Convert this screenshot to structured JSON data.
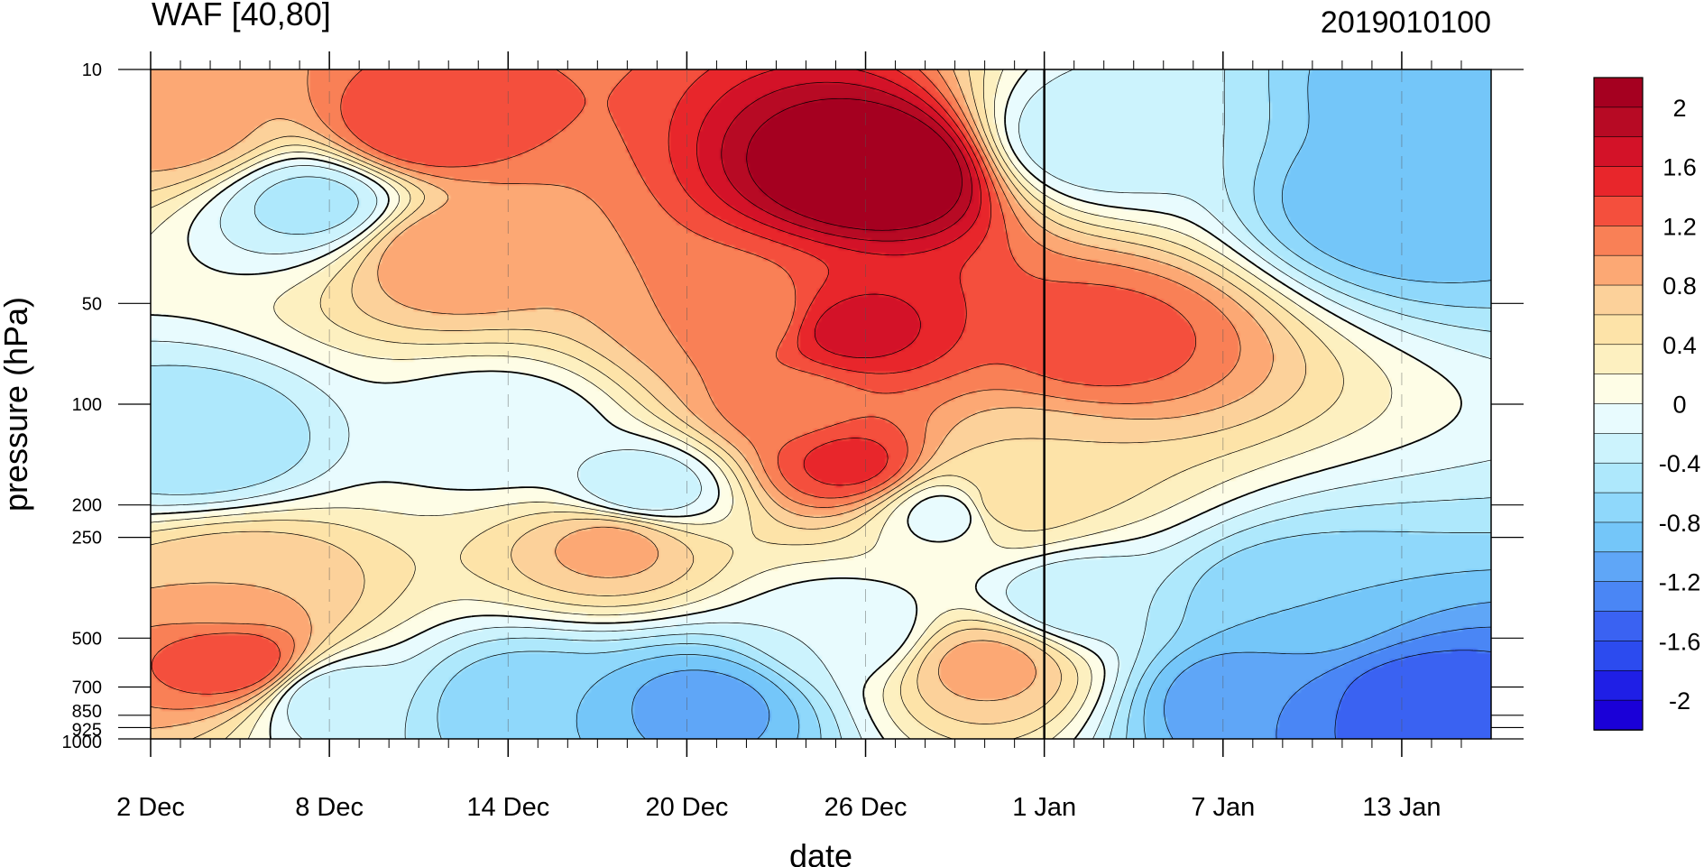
{
  "chart_data": {
    "type": "heatmap",
    "title": "WAF [40,80]",
    "right_title": "2019010100",
    "xlabel": "date",
    "ylabel": "pressure (hPa)",
    "x_start_date": "2 Dec",
    "xlim_days_from_2dec": [
      0,
      45
    ],
    "x_tick_labels": [
      "2 Dec",
      "8 Dec",
      "14 Dec",
      "20 Dec",
      "26 Dec",
      "1 Jan",
      "7 Jan",
      "13 Jan"
    ],
    "x_tick_days": [
      0,
      6,
      12,
      18,
      24,
      30,
      36,
      42
    ],
    "y_scale": "log",
    "ylim": [
      1000,
      10
    ],
    "y_tick_labels": [
      "10",
      "50",
      "100",
      "200",
      "250",
      "500",
      "700",
      "850",
      "925",
      "1000"
    ],
    "y_tick_values": [
      10,
      50,
      100,
      200,
      250,
      500,
      700,
      850,
      925,
      1000
    ],
    "colorbar": {
      "levels": [
        -2.2,
        -2.0,
        -1.8,
        -1.6,
        -1.4,
        -1.2,
        -1.0,
        -0.8,
        -0.6,
        -0.4,
        -0.2,
        0,
        0.2,
        0.4,
        0.6,
        0.8,
        1.0,
        1.2,
        1.4,
        1.6,
        1.8,
        2.0,
        2.2
      ],
      "labels": [
        "2",
        "1.6",
        "1.2",
        "0.8",
        "0.4",
        "0",
        "-0.4",
        "-0.8",
        "-1.2",
        "-1.6",
        "-2"
      ],
      "colors": [
        "#1a00d8",
        "#1f1fe6",
        "#2c4bef",
        "#3a62f2",
        "#4a86f5",
        "#5fa6f7",
        "#74c6f9",
        "#8fd8fb",
        "#aee8fc",
        "#ccf3fd",
        "#e8fbfe",
        "#fefde6",
        "#fdf0c0",
        "#fde3a8",
        "#fcd19a",
        "#fca874",
        "#f98056",
        "#f44f3d",
        "#e8262b",
        "#d31228",
        "#b70a24",
        "#a50020"
      ]
    },
    "marked_date": "1 Jan",
    "features": [
      {
        "day": 24.5,
        "p": 20,
        "value": 2.4
      },
      {
        "day": 23.5,
        "p": 60,
        "value": 1.7
      },
      {
        "day": 23.5,
        "p": 150,
        "value": 1.5
      },
      {
        "day": 21.5,
        "p": 100,
        "value": 1.1
      },
      {
        "day": 20,
        "p": 55,
        "value": 1.0
      },
      {
        "day": 9,
        "p": 15,
        "value": 1.4
      },
      {
        "day": 10,
        "p": 35,
        "value": 1.0
      },
      {
        "day": 1,
        "p": 15,
        "value": 0.9
      },
      {
        "day": 3,
        "p": 600,
        "value": 1.4
      },
      {
        "day": 3,
        "p": 350,
        "value": 0.8
      },
      {
        "day": 28,
        "p": 600,
        "value": 0.9
      },
      {
        "day": 28.5,
        "p": 200,
        "value": 0.6
      },
      {
        "day": 31.8,
        "p": 65,
        "value": 1.3
      },
      {
        "day": 29.2,
        "p": 160,
        "value": 0.6
      },
      {
        "day": 15.5,
        "p": 260,
        "value": 0.9
      },
      {
        "day": 5.5,
        "p": 25,
        "value": -0.5
      },
      {
        "day": 1.5,
        "p": 130,
        "value": -0.6
      },
      {
        "day": 16.5,
        "p": 180,
        "value": -0.4
      },
      {
        "day": 12,
        "p": 120,
        "value": -0.2
      },
      {
        "day": 6,
        "p": 750,
        "value": -0.4
      },
      {
        "day": 12.5,
        "p": 800,
        "value": -0.8
      },
      {
        "day": 18.5,
        "p": 800,
        "value": -1.1
      },
      {
        "day": 23.5,
        "p": 480,
        "value": -0.2
      },
      {
        "day": 27,
        "p": 210,
        "value": -0.2
      },
      {
        "day": 31.5,
        "p": 16,
        "value": -0.4
      },
      {
        "day": 42,
        "p": 25,
        "value": -1.0
      },
      {
        "day": 44,
        "p": 12,
        "value": -1.0
      },
      {
        "day": 38,
        "p": 400,
        "value": -0.8
      },
      {
        "day": 37,
        "p": 750,
        "value": -1.2
      },
      {
        "day": 42.5,
        "p": 820,
        "value": -1.6
      },
      {
        "day": 31,
        "p": 380,
        "value": -0.4
      }
    ]
  }
}
